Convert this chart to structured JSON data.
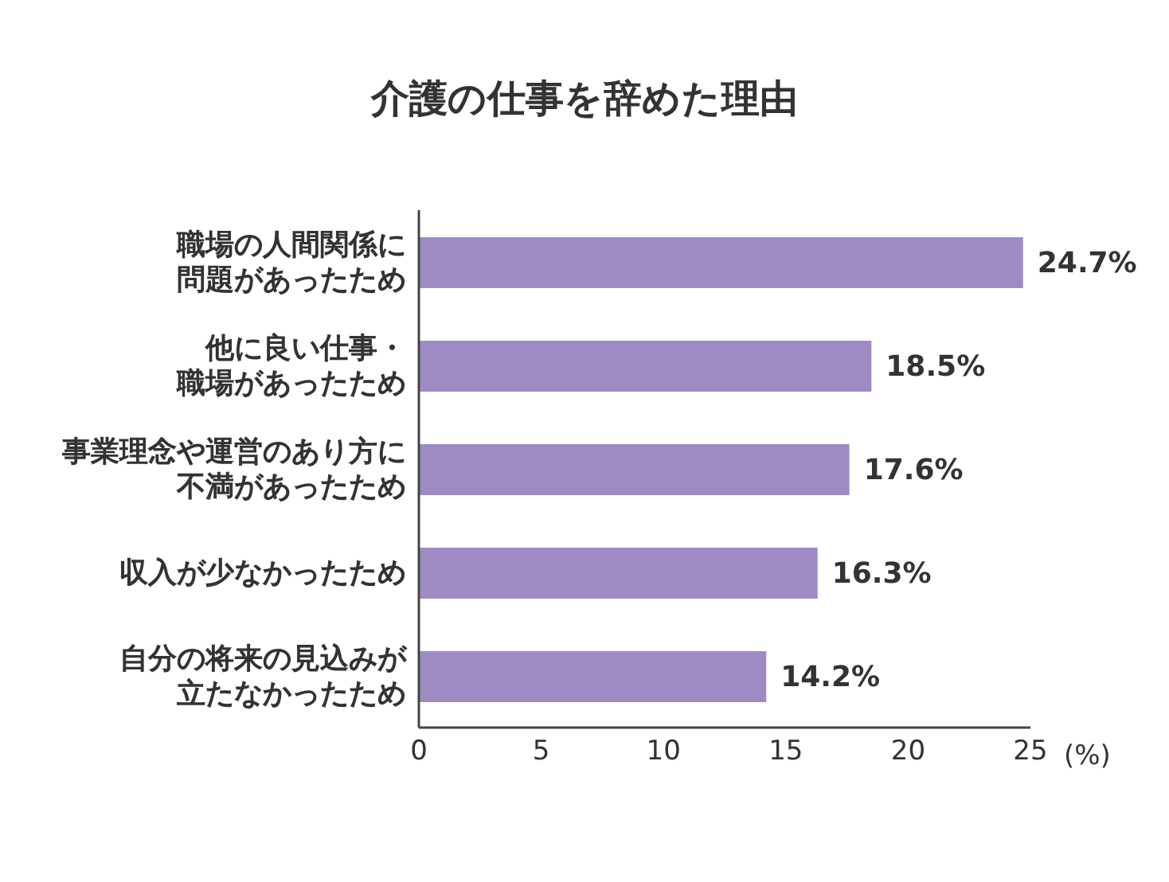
{
  "chart_data": {
    "type": "bar",
    "orientation": "horizontal",
    "title": "介護の仕事を辞めた理由",
    "xlabel": "(%)",
    "categories": [
      "職場の人間関係に問題があったため",
      "他に良い仕事・職場があったため",
      "事業理念や運営のあり方に不満があったため",
      "収入が少なかったため",
      "自分の将来の見込みが立たなかったため"
    ],
    "values": [
      24.7,
      18.5,
      17.6,
      16.3,
      14.2
    ],
    "color": "#9f8bc4",
    "value_labels": [
      "24.7%",
      "18.5%",
      "17.6%",
      "16.3%",
      "14.2%"
    ],
    "xlim": [
      0,
      25
    ],
    "xticks": [
      0,
      5,
      10,
      15,
      20,
      25
    ]
  }
}
